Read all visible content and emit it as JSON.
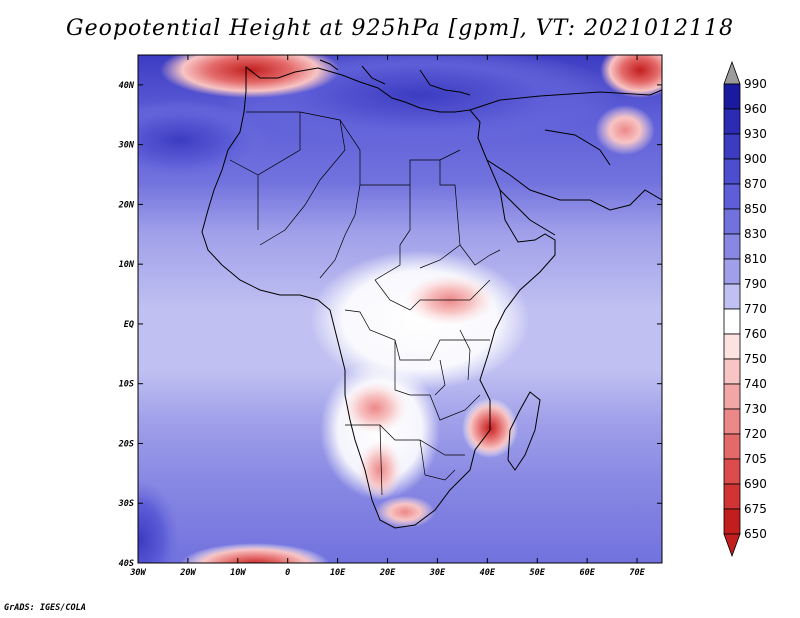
{
  "title": "Geopotential Height at 925hPa [gpm], VT: 2021012118",
  "credit": "GrADS: IGES/COLA",
  "axes": {
    "lat_labels": [
      "40N",
      "30N",
      "20N",
      "10N",
      "EQ",
      "10S",
      "20S",
      "30S",
      "40S"
    ],
    "lat_values": [
      40,
      30,
      20,
      10,
      0,
      -10,
      -20,
      -30,
      -40
    ],
    "lon_labels": [
      "30W",
      "20W",
      "10W",
      "0",
      "10E",
      "20E",
      "30E",
      "40E",
      "50E",
      "60E",
      "70E"
    ],
    "lon_values": [
      -30,
      -20,
      -10,
      0,
      10,
      20,
      30,
      40,
      50,
      60,
      70
    ],
    "lon_range": [
      -30,
      75
    ],
    "lat_range": [
      -40,
      45
    ]
  },
  "colorbar": {
    "levels": [
      "990",
      "960",
      "930",
      "900",
      "870",
      "850",
      "830",
      "810",
      "790",
      "770",
      "760",
      "750",
      "740",
      "730",
      "720",
      "705",
      "690",
      "675",
      "650"
    ],
    "colors": [
      "#9c9c9c",
      "#1a1a9e",
      "#2b2bb3",
      "#3c3cc2",
      "#4d4dcf",
      "#5e5ed8",
      "#7272de",
      "#8888e4",
      "#a0a0ea",
      "#c0c0f2",
      "#ffffff",
      "#fde2e2",
      "#f8c4c4",
      "#f2a6a6",
      "#ec8888",
      "#e46a6a",
      "#dc4c4c",
      "#d03434",
      "#c21e1e",
      "#c21e1e"
    ]
  }
}
